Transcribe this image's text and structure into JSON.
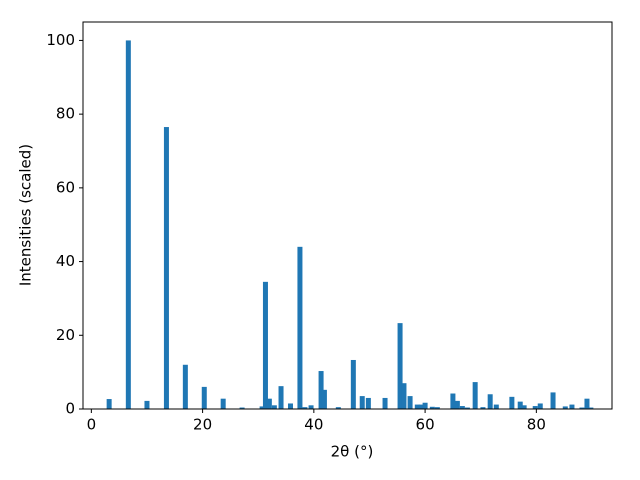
{
  "chart_data": {
    "type": "bar",
    "x_label": "2θ (°)",
    "y_label": "Intensities (scaled)",
    "color": "#1f77b4",
    "x": [
      3.2,
      6.65,
      10.0,
      13.5,
      16.9,
      20.3,
      23.7,
      27.1,
      30.7,
      31.3,
      32.0,
      32.9,
      34.1,
      35.8,
      37.5,
      38.4,
      39.5,
      41.3,
      41.9,
      44.4,
      47.1,
      48.7,
      49.8,
      52.8,
      55.5,
      56.2,
      57.3,
      58.6,
      59.3,
      60.0,
      61.3,
      62.2,
      65.0,
      65.8,
      66.7,
      67.6,
      69.0,
      70.4,
      71.7,
      72.8,
      75.6,
      77.1,
      77.8,
      79.8,
      80.7,
      83.0,
      85.2,
      86.4,
      88.2,
      89.1,
      89.8
    ],
    "values": [
      2.7,
      100,
      2.2,
      76.5,
      12,
      6,
      2.8,
      0.4,
      0.7,
      34.5,
      2.8,
      1,
      6.2,
      1.5,
      44,
      0.5,
      1,
      10.3,
      5.2,
      0.5,
      13.3,
      3.5,
      3,
      3,
      23.3,
      7,
      3.5,
      1.2,
      1.2,
      1.7,
      0.6,
      0.5,
      4.2,
      2.2,
      0.8,
      0.4,
      7.3,
      0.5,
      4,
      1.2,
      3.3,
      2,
      1,
      0.8,
      1.5,
      4.5,
      0.7,
      1.2,
      0.4,
      2.8,
      0.4
    ],
    "xlim": [
      -1.5,
      93.6
    ],
    "ylim": [
      0,
      105
    ],
    "xticks": [
      0,
      20,
      40,
      60,
      80
    ],
    "yticks": [
      0,
      20,
      40,
      60,
      80,
      100
    ]
  }
}
